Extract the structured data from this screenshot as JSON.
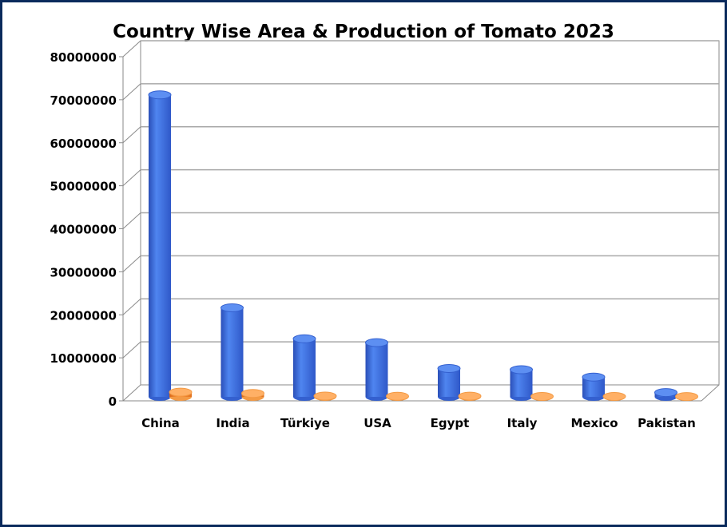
{
  "chart_data": {
    "type": "bar",
    "title": "Country Wise Area & Production of Tomato 2023",
    "categories": [
      "China",
      "India",
      "Türkiye",
      "USA",
      "Egypt",
      "Italy",
      "Mexico",
      "Pakistan"
    ],
    "series": [
      {
        "values": [
          70200000,
          20700000,
          13500000,
          12600000,
          6600000,
          6300000,
          4600000,
          1000000
        ],
        "color": "#3f6fe0"
      },
      {
        "values": [
          1100000,
          800000,
          180000,
          130000,
          170000,
          90000,
          90000,
          60000
        ],
        "color": "#f08a2e"
      }
    ],
    "yticks": [
      "0",
      "10000000",
      "20000000",
      "30000000",
      "40000000",
      "50000000",
      "60000000",
      "70000000",
      "80000000"
    ],
    "ylim": [
      0,
      80000000
    ],
    "grid": true,
    "legend": "none"
  }
}
